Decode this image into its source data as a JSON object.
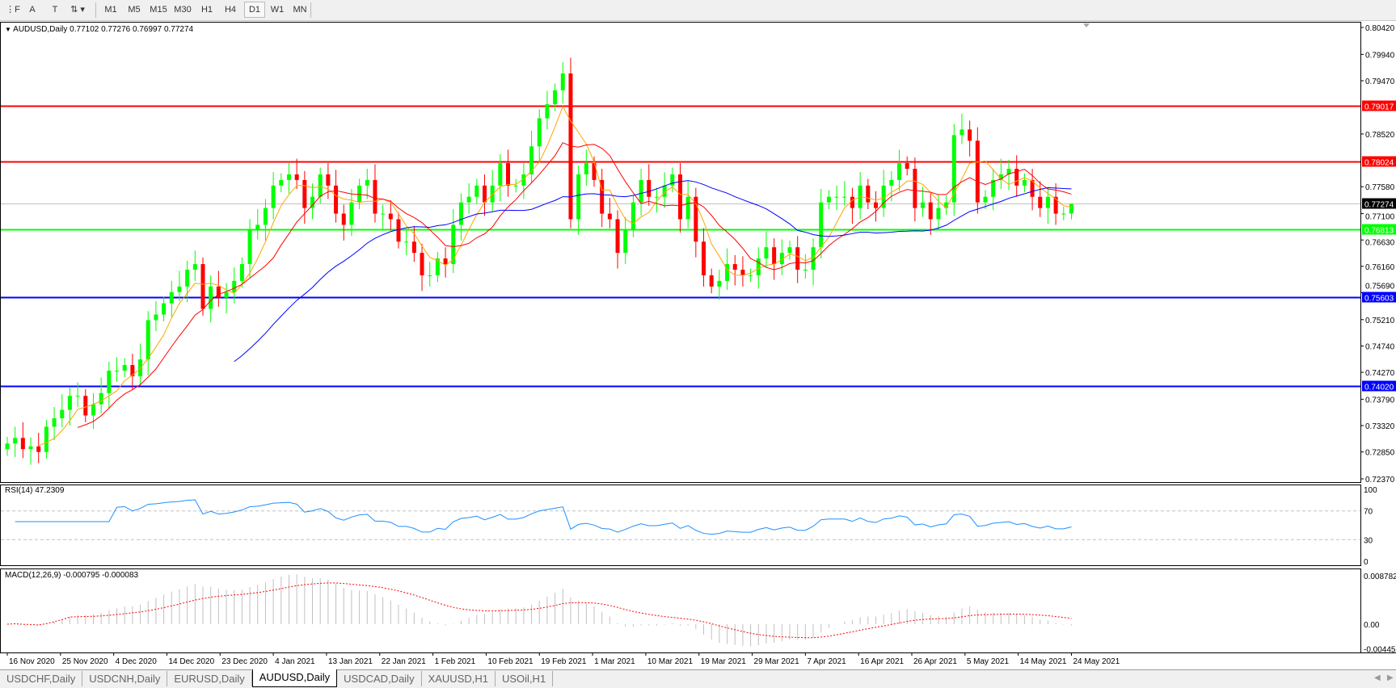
{
  "toolbar": {
    "tools": [
      {
        "name": "period-separator-icon",
        "glyph": "⋮F"
      },
      {
        "name": "text-tool-icon",
        "glyph": "A"
      },
      {
        "name": "text-label-tool-icon",
        "glyph": "T"
      },
      {
        "name": "arrows-tool-icon",
        "glyph": "⇅ ▾"
      }
    ],
    "timeframes": [
      "M1",
      "M5",
      "M15",
      "M30",
      "H1",
      "H4",
      "D1",
      "W1",
      "MN"
    ],
    "active_timeframe": "D1"
  },
  "chart": {
    "header": "AUDUSD,Daily  0.77102 0.77276 0.76997 0.77274",
    "rsi_label": "RSI(14) 47.2309",
    "macd_label": "MACD(12,26,9) -0.000795 -0.000083"
  },
  "chart_data": {
    "type": "candlestick",
    "symbol": "AUDUSD",
    "timeframe": "Daily",
    "last_bar": {
      "open": 0.77102,
      "high": 0.77276,
      "low": 0.76997,
      "close": 0.77274
    },
    "close": [
      0.73,
      0.731,
      0.729,
      0.7295,
      0.7285,
      0.733,
      0.7345,
      0.736,
      0.7385,
      0.7385,
      0.735,
      0.737,
      0.739,
      0.743,
      0.743,
      0.744,
      0.742,
      0.745,
      0.752,
      0.753,
      0.755,
      0.757,
      0.758,
      0.761,
      0.762,
      0.754,
      0.758,
      0.756,
      0.757,
      0.759,
      0.762,
      0.768,
      0.769,
      0.772,
      0.776,
      0.777,
      0.778,
      0.777,
      0.772,
      0.774,
      0.778,
      0.776,
      0.771,
      0.769,
      0.773,
      0.776,
      0.777,
      0.771,
      0.771,
      0.77,
      0.766,
      0.766,
      0.764,
      0.76,
      0.76,
      0.763,
      0.762,
      0.769,
      0.773,
      0.774,
      0.776,
      0.773,
      0.776,
      0.78,
      0.776,
      0.776,
      0.778,
      0.783,
      0.788,
      0.7905,
      0.793,
      0.796,
      0.77,
      0.778,
      0.78,
      0.777,
      0.771,
      0.77,
      0.764,
      0.768,
      0.773,
      0.777,
      0.774,
      0.774,
      0.776,
      0.778,
      0.77,
      0.774,
      0.766,
      0.76,
      0.758,
      0.759,
      0.762,
      0.761,
      0.76,
      0.76,
      0.763,
      0.765,
      0.762,
      0.764,
      0.765,
      0.761,
      0.761,
      0.765,
      0.773,
      0.774,
      0.774,
      0.774,
      0.772,
      0.776,
      0.773,
      0.772,
      0.776,
      0.777,
      0.78,
      0.779,
      0.772,
      0.773,
      0.77,
      0.772,
      0.773,
      0.785,
      0.786,
      0.784,
      0.773,
      0.774,
      0.777,
      0.778,
      0.779,
      0.776,
      0.777,
      0.774,
      0.772,
      0.774,
      0.771,
      0.771,
      0.77274
    ],
    "price_axis": [
      "0.80420",
      "0.79940",
      "0.79470",
      "0.78520",
      "0.77580",
      "0.77100",
      "0.76630",
      "0.76160",
      "0.75690",
      "0.75210",
      "0.74740",
      "0.74270",
      "0.73790",
      "0.73320",
      "0.72850",
      "0.72370"
    ],
    "ylim": [
      0.7237,
      0.8042
    ],
    "horizontal_lines": [
      {
        "price": 0.79017,
        "label": "0.79017",
        "color": "#ff0000"
      },
      {
        "price": 0.78024,
        "label": "0.78024",
        "color": "#ff0000"
      },
      {
        "price": 0.76813,
        "label": "0.76813",
        "color": "#00ff00"
      },
      {
        "price": 0.75603,
        "label": "0.75603",
        "color": "#0000ff"
      },
      {
        "price": 0.7402,
        "label": "0.74020",
        "color": "#0000ff"
      }
    ],
    "current_price": {
      "price": 0.77274,
      "label": "0.77274"
    },
    "moving_averages": [
      {
        "period": 5,
        "color": "#ffa500"
      },
      {
        "period": 10,
        "color": "#ff0000"
      },
      {
        "period": 30,
        "color": "#0000ff"
      }
    ],
    "date_labels": [
      {
        "bar": 0,
        "text": "16 Nov 2020"
      },
      {
        "bar": 7,
        "text": "25 Nov 2020"
      },
      {
        "bar": 14,
        "text": "4 Dec 2020"
      },
      {
        "bar": 21,
        "text": "14 Dec 2020"
      },
      {
        "bar": 28,
        "text": "23 Dec 2020"
      },
      {
        "bar": 35,
        "text": "4 Jan 2021"
      },
      {
        "bar": 42,
        "text": "13 Jan 2021"
      },
      {
        "bar": 49,
        "text": "22 Jan 2021"
      },
      {
        "bar": 56,
        "text": "1 Feb 2021"
      },
      {
        "bar": 63,
        "text": "10 Feb 2021"
      },
      {
        "bar": 70,
        "text": "19 Feb 2021"
      },
      {
        "bar": 77,
        "text": "1 Mar 2021"
      },
      {
        "bar": 84,
        "text": "10 Mar 2021"
      },
      {
        "bar": 91,
        "text": "19 Mar 2021"
      },
      {
        "bar": 98,
        "text": "29 Mar 2021"
      },
      {
        "bar": 105,
        "text": "7 Apr 2021"
      },
      {
        "bar": 112,
        "text": "16 Apr 2021"
      },
      {
        "bar": 119,
        "text": "26 Apr 2021"
      },
      {
        "bar": 126,
        "text": "5 May 2021"
      },
      {
        "bar": 133,
        "text": "14 May 2021"
      },
      {
        "bar": 140,
        "text": "24 May 2021"
      }
    ],
    "rsi": {
      "period": 14,
      "axis": [
        "100",
        "70",
        "30",
        "0"
      ],
      "levels": [
        70,
        30
      ],
      "color": "#1e90ff"
    },
    "macd": {
      "fast": 12,
      "slow": 26,
      "signal": 9,
      "axis": [
        "0.008782",
        "0.00",
        "-0.004451"
      ],
      "ylim": [
        -0.004451,
        0.008782
      ],
      "hist_color": "#c0c0c0",
      "signal_color": "#ff0000"
    },
    "colors": {
      "bull": "#00ff00",
      "bear": "#ff0000"
    }
  },
  "tabs": [
    "USDCHF,Daily",
    "USDCNH,Daily",
    "EURUSD,Daily",
    "AUDUSD,Daily",
    "USDCAD,Daily",
    "XAUUSD,H1",
    "USOil,H1"
  ],
  "active_tab": "AUDUSD,Daily"
}
